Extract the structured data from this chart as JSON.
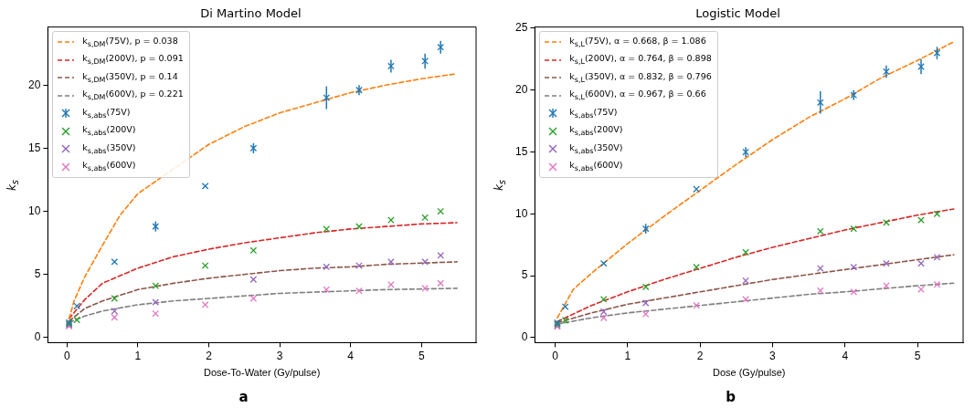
{
  "chart_data": [
    {
      "type": "scatter",
      "title": "Di Martino Model",
      "xlabel": "Dose-To-Water (Gy/pulse)",
      "ylabel": "k$_{s}$",
      "annotations": [
        "a"
      ],
      "xlim": [
        -0.27,
        5.77
      ],
      "ylim": [
        -0.4,
        24.6
      ],
      "xticks": [
        0,
        1,
        2,
        3,
        4,
        5
      ],
      "yticks": [
        0,
        5,
        10,
        15,
        20
      ],
      "grid": false,
      "legend": "top left",
      "series": [
        {
          "type": "line",
          "name": "k$_{s,DM}$(75V), p = 0.038",
          "color": "#ff7f0e",
          "line_style": "dashed",
          "marker": "none",
          "x": [
            0.03,
            0.1,
            0.25,
            0.5,
            0.75,
            1,
            2,
            2.5,
            3,
            4,
            4.5,
            5,
            5.5
          ],
          "values": [
            1.5,
            2.9,
            4.8,
            7.3,
            9.7,
            11.4,
            15.3,
            16.7,
            17.8,
            19.4,
            20.0,
            20.5,
            20.9
          ]
        },
        {
          "type": "line",
          "name": "k$_{s,DM}$(200V), p = 0.091",
          "color": "#d62728",
          "line_style": "dashed",
          "marker": "none",
          "x": [
            0.03,
            0.25,
            0.5,
            1,
            1.5,
            2,
            2.5,
            3,
            3.5,
            4,
            4.5,
            5,
            5.5
          ],
          "values": [
            1.5,
            3.0,
            4.3,
            5.5,
            6.4,
            7.0,
            7.5,
            7.9,
            8.3,
            8.6,
            8.8,
            9.0,
            9.1
          ]
        },
        {
          "type": "line",
          "name": "k$_{s,DM}$(350V), p = 0.14",
          "color": "#8c564b",
          "line_style": "dashed",
          "marker": "none",
          "x": [
            0.03,
            0.25,
            0.5,
            1,
            1.5,
            2,
            2.5,
            3,
            3.5,
            4,
            4.5,
            5,
            5.5
          ],
          "values": [
            1.3,
            2.3,
            2.9,
            3.8,
            4.3,
            4.7,
            5.0,
            5.3,
            5.5,
            5.6,
            5.8,
            5.9,
            6.0
          ]
        },
        {
          "type": "line",
          "name": "k$_{s,DM}$(600V), p = 0.221",
          "color": "#7f7f7f",
          "line_style": "dashed",
          "marker": "none",
          "x": [
            0.03,
            0.25,
            0.5,
            1,
            1.5,
            2,
            2.5,
            3,
            3.5,
            4,
            4.5,
            5,
            5.5
          ],
          "values": [
            1.2,
            1.7,
            2.1,
            2.6,
            2.9,
            3.1,
            3.3,
            3.5,
            3.6,
            3.7,
            3.8,
            3.85,
            3.9
          ]
        },
        {
          "type": "scatter",
          "name": "k$_{s,abs}$(75V)",
          "color": "#1f77b4",
          "marker": "cross",
          "x": [
            0.03,
            0.14,
            0.67,
            1.25,
            1.95,
            2.63,
            3.66,
            4.12,
            4.57,
            5.05,
            5.27
          ],
          "values": [
            1.2,
            2.5,
            6.0,
            8.8,
            12.0,
            15.0,
            19.0,
            19.6,
            21.5,
            21.9,
            23.0
          ],
          "errors": [
            null,
            null,
            null,
            0.4,
            null,
            0.4,
            0.9,
            0.4,
            0.5,
            0.6,
            0.5
          ]
        },
        {
          "type": "scatter",
          "name": "k$_{s,abs}$(200V)",
          "color": "#2ca02c",
          "marker": "cross",
          "x": [
            0.03,
            0.14,
            0.67,
            1.25,
            1.95,
            2.63,
            3.66,
            4.12,
            4.57,
            5.05,
            5.27
          ],
          "values": [
            1.1,
            1.4,
            3.1,
            4.1,
            5.7,
            6.9,
            8.6,
            8.8,
            9.3,
            9.5,
            10.0
          ]
        },
        {
          "type": "scatter",
          "name": "k$_{s,abs}$(350V)",
          "color": "#9467bd",
          "marker": "cross",
          "x": [
            0.03,
            0.14,
            0.67,
            1.25,
            1.95,
            2.63,
            3.66,
            4.12,
            4.57,
            5.05,
            5.27
          ],
          "values": [
            1.0,
            null,
            2.1,
            2.8,
            null,
            4.6,
            5.6,
            5.7,
            6.0,
            6.0,
            6.5
          ]
        },
        {
          "type": "scatter",
          "name": "k$_{s,abs}$(600V)",
          "color": "#e377c2",
          "marker": "cross",
          "x": [
            0.03,
            0.14,
            0.67,
            1.25,
            1.95,
            2.63,
            3.66,
            4.12,
            4.57,
            5.05,
            5.27
          ],
          "values": [
            0.9,
            null,
            1.6,
            1.9,
            2.6,
            3.1,
            3.8,
            3.7,
            4.2,
            3.9,
            4.3
          ]
        }
      ]
    },
    {
      "type": "scatter",
      "title": "Logistic Model",
      "xlabel": "Dose (Gy/pulse)",
      "ylabel": "k$_{s}$",
      "annotations": [
        "b"
      ],
      "xlim": [
        -0.28,
        5.63
      ],
      "ylim": [
        -0.4,
        25.1
      ],
      "xticks": [
        0,
        1,
        2,
        3,
        4,
        5
      ],
      "yticks": [
        0,
        5,
        10,
        15,
        20,
        25
      ],
      "grid": false,
      "legend": "top left",
      "series": [
        {
          "type": "line",
          "name": "k$_{s,L}$(75V), α = 0.668, β = 1.086",
          "color": "#ff7f0e",
          "line_style": "dashed",
          "marker": "none",
          "x": [
            0.03,
            0.25,
            0.5,
            1,
            1.5,
            2,
            2.5,
            3,
            3.5,
            4,
            4.5,
            5,
            5.5
          ],
          "values": [
            1.6,
            3.9,
            5.2,
            7.6,
            9.8,
            11.9,
            14.0,
            16.0,
            17.8,
            19.3,
            21.0,
            22.4,
            23.9
          ]
        },
        {
          "type": "line",
          "name": "k$_{s,L}$(200V), α = 0.764, β = 0.898",
          "color": "#d62728",
          "line_style": "dashed",
          "marker": "none",
          "x": [
            0.03,
            0.5,
            1,
            1.5,
            2,
            2.5,
            3,
            3.5,
            4,
            4.5,
            5,
            5.5
          ],
          "values": [
            1.3,
            2.6,
            3.7,
            4.7,
            5.6,
            6.5,
            7.3,
            8.0,
            8.7,
            9.3,
            9.9,
            10.4
          ]
        },
        {
          "type": "line",
          "name": "k$_{s,L}$(350V), α = 0.832, β = 0.796",
          "color": "#8c564b",
          "line_style": "dashed",
          "marker": "none",
          "x": [
            0.03,
            0.5,
            1,
            1.5,
            2,
            2.5,
            3,
            3.5,
            4,
            4.5,
            5,
            5.5
          ],
          "values": [
            1.2,
            2.0,
            2.7,
            3.2,
            3.7,
            4.2,
            4.7,
            5.1,
            5.5,
            5.9,
            6.3,
            6.7
          ]
        },
        {
          "type": "line",
          "name": "k$_{s,L}$(600V), α = 0.967, β = 0.66",
          "color": "#7f7f7f",
          "line_style": "dashed",
          "marker": "none",
          "x": [
            0.03,
            0.5,
            1,
            1.5,
            2,
            2.5,
            3,
            3.5,
            4,
            4.5,
            5,
            5.5
          ],
          "values": [
            1.1,
            1.6,
            2.0,
            2.3,
            2.6,
            2.9,
            3.2,
            3.5,
            3.7,
            3.95,
            4.2,
            4.4
          ]
        },
        {
          "type": "scatter",
          "name": "k$_{s,abs}$(75V)",
          "color": "#1f77b4",
          "marker": "cross",
          "x": [
            0.03,
            0.14,
            0.67,
            1.25,
            1.95,
            2.63,
            3.66,
            4.12,
            4.57,
            5.05,
            5.27
          ],
          "values": [
            1.2,
            2.5,
            6.0,
            8.8,
            12.0,
            15.0,
            19.0,
            19.6,
            21.5,
            21.9,
            23.0
          ],
          "errors": [
            null,
            null,
            null,
            0.4,
            null,
            0.4,
            0.9,
            0.4,
            0.5,
            0.6,
            0.5
          ]
        },
        {
          "type": "scatter",
          "name": "k$_{s,abs}$(200V)",
          "color": "#2ca02c",
          "marker": "cross",
          "x": [
            0.03,
            0.14,
            0.67,
            1.25,
            1.95,
            2.63,
            3.66,
            4.12,
            4.57,
            5.05,
            5.27
          ],
          "values": [
            1.1,
            1.4,
            3.1,
            4.1,
            5.7,
            6.9,
            8.6,
            8.8,
            9.3,
            9.5,
            10.0
          ]
        },
        {
          "type": "scatter",
          "name": "k$_{s,abs}$(350V)",
          "color": "#9467bd",
          "marker": "cross",
          "x": [
            0.03,
            0.14,
            0.67,
            1.25,
            1.95,
            2.63,
            3.66,
            4.12,
            4.57,
            5.05,
            5.27
          ],
          "values": [
            1.0,
            null,
            2.1,
            2.8,
            null,
            4.6,
            5.6,
            5.7,
            6.0,
            6.0,
            6.5
          ]
        },
        {
          "type": "scatter",
          "name": "k$_{s,abs}$(600V)",
          "color": "#e377c2",
          "marker": "cross",
          "x": [
            0.03,
            0.14,
            0.67,
            1.25,
            1.95,
            2.63,
            3.66,
            4.12,
            4.57,
            5.05,
            5.27
          ],
          "values": [
            0.9,
            null,
            1.6,
            1.9,
            2.6,
            3.1,
            3.8,
            3.7,
            4.2,
            3.9,
            4.3
          ]
        }
      ]
    }
  ]
}
